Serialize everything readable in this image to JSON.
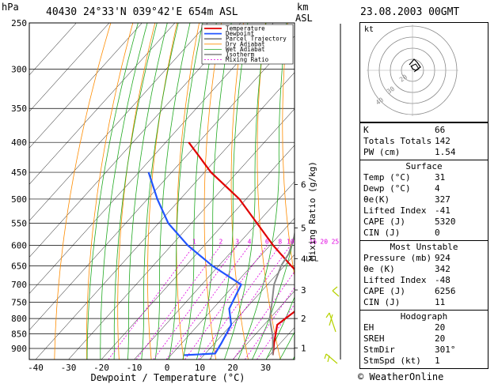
{
  "header": {
    "p_unit": "hPa",
    "station": "40430  24°33'N  039°42'E  654m  ASL",
    "km_label": "km",
    "asl_label": "ASL",
    "datetime": "23.08.2003  00GMT"
  },
  "chart_data": {
    "type": "line",
    "title": "40430  24°33'N  039°42'E  654m  ASL",
    "xlabel": "Dewpoint / Temperature (°C)",
    "ylabel": "hPa",
    "y_secondary_label": "Mixing Ratio (g/kg)",
    "x_ticks": [
      -40,
      -30,
      -20,
      -10,
      0,
      10,
      20,
      30
    ],
    "pressure_levels": [
      250,
      300,
      350,
      400,
      450,
      500,
      550,
      600,
      650,
      700,
      750,
      800,
      850,
      900
    ],
    "km_ticks": [
      {
        "km": "1",
        "p": 898
      },
      {
        "km": "2",
        "p": 800
      },
      {
        "km": "3",
        "p": 715
      },
      {
        "km": "4",
        "p": 632
      },
      {
        "km": "5",
        "p": 560
      },
      {
        "km": "6",
        "p": 472
      }
    ],
    "lcl_label": "LCL",
    "lcl_p": 632,
    "mixing_ratio_labels": [
      "1",
      "2",
      "3",
      "4",
      "6",
      "8",
      "10",
      "16",
      "20",
      "25"
    ],
    "mixing_ratio_values": [
      1,
      2,
      3,
      4,
      6,
      8,
      10,
      16,
      20,
      25
    ],
    "series": [
      {
        "name": "Temperature",
        "color": "#e00000",
        "points": [
          [
            31,
            924
          ],
          [
            28,
            880
          ],
          [
            24,
            820
          ],
          [
            26,
            770
          ],
          [
            23,
            700
          ],
          [
            12,
            650
          ],
          [
            1,
            600
          ],
          [
            -10,
            550
          ],
          [
            -22,
            500
          ],
          [
            -38,
            450
          ],
          [
            -53,
            400
          ]
        ]
      },
      {
        "name": "Dewpoint",
        "color": "#2255ff",
        "points": [
          [
            4,
            924
          ],
          [
            13,
            918
          ],
          [
            12,
            880
          ],
          [
            10,
            820
          ],
          [
            5,
            770
          ],
          [
            2,
            700
          ],
          [
            -12,
            650
          ],
          [
            -25,
            600
          ],
          [
            -37,
            550
          ],
          [
            -47,
            500
          ],
          [
            -57,
            450
          ]
        ]
      },
      {
        "name": "Parcel Trajectory",
        "color": "#888888",
        "points": [
          [
            31,
            924
          ],
          [
            26,
            860
          ],
          [
            20,
            800
          ],
          [
            17,
            760
          ],
          [
            12,
            700
          ],
          [
            9,
            650
          ],
          [
            8,
            620
          ],
          [
            5,
            580
          ],
          [
            1,
            540
          ],
          [
            -5,
            500
          ],
          [
            -11,
            450
          ],
          [
            -19,
            400
          ],
          [
            -28,
            350
          ],
          [
            -38,
            300
          ],
          [
            -49,
            260
          ],
          [
            -52,
            250
          ]
        ]
      }
    ],
    "legend": [
      "Temperature",
      "Dewpoint",
      "Parcel Trajectory",
      "Dry Adiabat",
      "Wet Adiabat",
      "Isotherm",
      "Mixing Ratio"
    ],
    "legend_position": "top-right"
  },
  "hodograph": {
    "label": "kt",
    "rings": [
      "10",
      "20",
      "30",
      "40"
    ]
  },
  "indices": {
    "top": [
      {
        "k": "K",
        "v": "66"
      },
      {
        "k": "Totals Totals",
        "v": "142"
      },
      {
        "k": "PW (cm)",
        "v": "1.54"
      }
    ],
    "surface_title": "Surface",
    "surface": [
      {
        "k": "Temp (°C)",
        "v": "31"
      },
      {
        "k": "Dewp (°C)",
        "v": "4"
      },
      {
        "k": "θe(K)",
        "v": "327"
      },
      {
        "k": "Lifted Index",
        "v": "-41"
      },
      {
        "k": "CAPE (J)",
        "v": "5320"
      },
      {
        "k": "CIN (J)",
        "v": "0"
      }
    ],
    "unstable_title": "Most Unstable",
    "unstable": [
      {
        "k": "Pressure (mb)",
        "v": "924"
      },
      {
        "k": "θe (K)",
        "v": "342"
      },
      {
        "k": "Lifted Index",
        "v": "-48"
      },
      {
        "k": "CAPE (J)",
        "v": "6256"
      },
      {
        "k": "CIN (J)",
        "v": "11"
      }
    ],
    "hodo_title": "Hodograph",
    "hodo": [
      {
        "k": "EH",
        "v": "20"
      },
      {
        "k": "SREH",
        "v": "20"
      },
      {
        "k": "StmDir",
        "v": "301°"
      },
      {
        "k": "StmSpd (kt)",
        "v": "1"
      }
    ]
  },
  "footer": {
    "copyright": "© WeatherOnline"
  }
}
